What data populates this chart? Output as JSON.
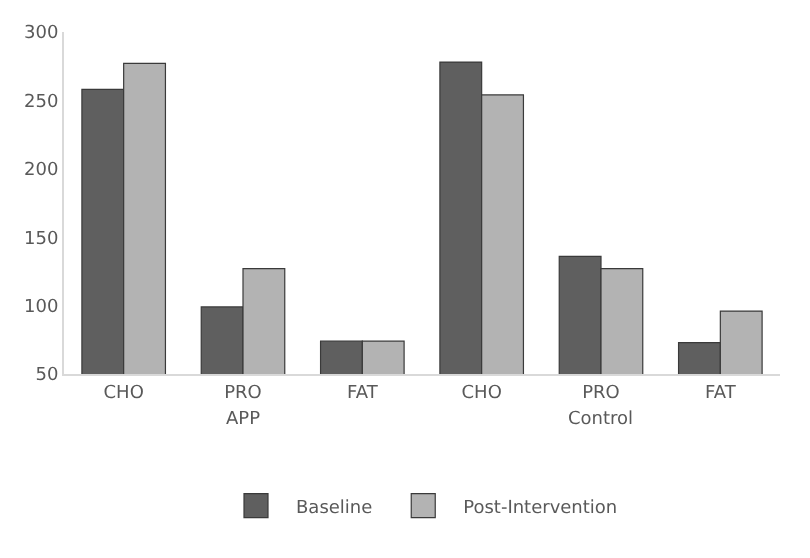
{
  "chart_data": {
    "type": "bar",
    "categories": [
      "CHO",
      "PRO",
      "FAT",
      "CHO",
      "PRO",
      "FAT"
    ],
    "series": [
      {
        "name": "Baseline",
        "color": "#5f5f5f",
        "values": [
          258,
          99,
          74,
          278,
          136,
          73
        ]
      },
      {
        "name": "Post-Intervention",
        "color": "#b3b3b3",
        "values": [
          277,
          127,
          74,
          254,
          127,
          96
        ]
      }
    ],
    "annotations": [
      "APP",
      "Control"
    ],
    "ylim": [
      50,
      300
    ],
    "yticks": [
      50,
      100,
      150,
      200,
      250,
      300
    ],
    "grid": false,
    "legend": "bottom"
  }
}
